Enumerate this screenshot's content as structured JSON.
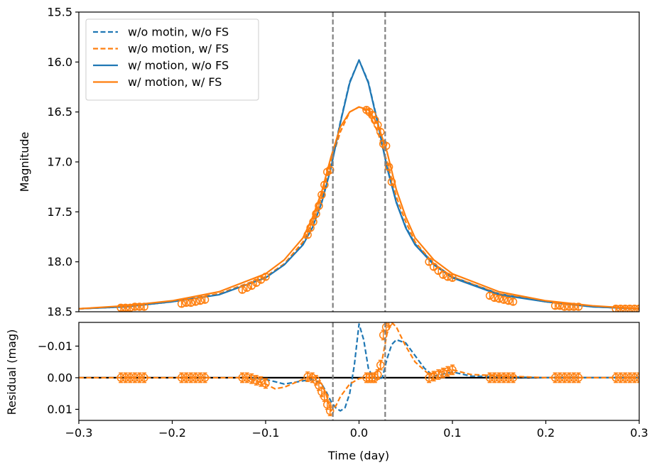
{
  "colors": {
    "blue": "#1f77b4",
    "orange": "#ff7f0e",
    "vline": "#808080",
    "zero_line": "#000000"
  },
  "chart_data": [
    {
      "type": "line",
      "panel": "top",
      "title": "",
      "xlabel": "",
      "ylabel": "Magnitude",
      "xlim": [
        -0.3,
        0.3
      ],
      "ylim": [
        18.5,
        15.5
      ],
      "y_inverted": true,
      "yticks": [
        "15.5",
        "16.0",
        "16.5",
        "17.0",
        "17.5",
        "18.0",
        "18.5"
      ],
      "vlines_x": [
        -0.028,
        0.028
      ],
      "legend_position": "top-left",
      "series": [
        {
          "name": "w/o motin, w/o FS",
          "style": "dashed",
          "color": "blue",
          "x": [
            -0.3,
            -0.25,
            -0.2,
            -0.15,
            -0.1,
            -0.08,
            -0.06,
            -0.05,
            -0.04,
            -0.03,
            -0.02,
            -0.01,
            0.0,
            0.01,
            0.02,
            0.03,
            0.04,
            0.05,
            0.06,
            0.08,
            0.1,
            0.15,
            0.2,
            0.25,
            0.3
          ],
          "y": [
            18.47,
            18.45,
            18.4,
            18.32,
            18.15,
            18.02,
            17.82,
            17.65,
            17.4,
            17.05,
            16.6,
            16.2,
            15.98,
            16.2,
            16.6,
            17.05,
            17.4,
            17.65,
            17.82,
            18.02,
            18.15,
            18.32,
            18.4,
            18.45,
            18.47
          ]
        },
        {
          "name": "w/o motion, w/ FS",
          "style": "dashed",
          "color": "orange",
          "x": [
            -0.3,
            -0.25,
            -0.2,
            -0.15,
            -0.1,
            -0.08,
            -0.06,
            -0.05,
            -0.04,
            -0.03,
            -0.02,
            -0.01,
            0.0,
            0.01,
            0.02,
            0.03,
            0.04,
            0.05,
            0.06,
            0.08,
            0.1,
            0.15,
            0.2,
            0.25,
            0.3
          ],
          "y": [
            18.47,
            18.45,
            18.4,
            18.32,
            18.15,
            18.02,
            17.8,
            17.6,
            17.35,
            17.0,
            16.7,
            16.5,
            16.45,
            16.5,
            16.7,
            17.0,
            17.35,
            17.6,
            17.8,
            18.02,
            18.15,
            18.32,
            18.4,
            18.45,
            18.47
          ]
        },
        {
          "name": "w/ motion, w/o FS",
          "style": "solid",
          "color": "blue",
          "x": [
            -0.3,
            -0.25,
            -0.2,
            -0.15,
            -0.1,
            -0.08,
            -0.06,
            -0.05,
            -0.04,
            -0.03,
            -0.02,
            -0.01,
            0.0,
            0.01,
            0.02,
            0.03,
            0.04,
            0.05,
            0.06,
            0.08,
            0.1,
            0.15,
            0.2,
            0.25,
            0.3
          ],
          "y": [
            18.47,
            18.45,
            18.4,
            18.33,
            18.16,
            18.03,
            17.83,
            17.66,
            17.41,
            17.06,
            16.61,
            16.21,
            15.98,
            16.21,
            16.61,
            17.06,
            17.41,
            17.66,
            17.83,
            18.03,
            18.16,
            18.33,
            18.4,
            18.45,
            18.47
          ]
        },
        {
          "name": "w/ motion, w/ FS",
          "style": "solid",
          "color": "orange",
          "x": [
            -0.3,
            -0.25,
            -0.2,
            -0.15,
            -0.1,
            -0.08,
            -0.06,
            -0.05,
            -0.04,
            -0.03,
            -0.02,
            -0.01,
            0.0,
            0.01,
            0.02,
            0.03,
            0.04,
            0.05,
            0.06,
            0.08,
            0.1,
            0.15,
            0.2,
            0.25,
            0.3
          ],
          "y": [
            18.47,
            18.44,
            18.39,
            18.3,
            18.12,
            17.98,
            17.76,
            17.56,
            17.3,
            16.95,
            16.65,
            16.5,
            16.45,
            16.48,
            16.62,
            16.9,
            17.28,
            17.55,
            17.76,
            17.98,
            18.12,
            18.3,
            18.39,
            18.44,
            18.47
          ]
        }
      ],
      "observations": {
        "color": "orange",
        "x": [
          -0.255,
          -0.25,
          -0.245,
          -0.24,
          -0.235,
          -0.23,
          -0.19,
          -0.185,
          -0.18,
          -0.175,
          -0.17,
          -0.165,
          -0.125,
          -0.12,
          -0.115,
          -0.11,
          -0.105,
          -0.1,
          -0.055,
          -0.052,
          -0.049,
          -0.046,
          -0.043,
          -0.04,
          -0.037,
          -0.034,
          -0.031,
          0.008,
          0.011,
          0.014,
          0.017,
          0.02,
          0.023,
          0.026,
          0.029,
          0.032,
          0.035,
          0.075,
          0.08,
          0.085,
          0.09,
          0.095,
          0.1,
          0.14,
          0.145,
          0.15,
          0.155,
          0.16,
          0.165,
          0.21,
          0.215,
          0.22,
          0.225,
          0.23,
          0.235,
          0.275,
          0.28,
          0.285,
          0.29,
          0.295,
          0.3
        ],
        "y": [
          18.46,
          18.46,
          18.46,
          18.45,
          18.45,
          18.45,
          18.42,
          18.41,
          18.41,
          18.4,
          18.39,
          18.38,
          18.28,
          18.26,
          18.24,
          18.21,
          18.18,
          18.15,
          17.73,
          17.66,
          17.6,
          17.52,
          17.44,
          17.33,
          17.23,
          17.1,
          17.08,
          16.48,
          16.5,
          16.53,
          16.58,
          16.63,
          16.7,
          16.82,
          16.84,
          17.05,
          17.2,
          18.0,
          18.05,
          18.09,
          18.13,
          18.15,
          18.16,
          18.34,
          18.36,
          18.37,
          18.38,
          18.39,
          18.4,
          18.44,
          18.44,
          18.45,
          18.45,
          18.45,
          18.45,
          18.47,
          18.47,
          18.47,
          18.47,
          18.47,
          18.47
        ],
        "yerr": 0.03
      }
    },
    {
      "type": "line",
      "panel": "bottom",
      "title": "",
      "xlabel": "Time (day)",
      "ylabel": "Residual (mag)",
      "xlim": [
        -0.3,
        0.3
      ],
      "ylim": [
        0.0135,
        -0.0175
      ],
      "y_inverted": true,
      "xticks": [
        "−0.3",
        "−0.2",
        "−0.1",
        "0.0",
        "0.1",
        "0.2",
        "0.3"
      ],
      "yticks": [
        "−0.01",
        "0.00",
        "0.01"
      ],
      "vlines_x": [
        -0.028,
        0.028
      ],
      "zero_line": 0.0,
      "series": [
        {
          "name": "w/o motin, w/o FS",
          "style": "dashed",
          "color": "blue",
          "x": [
            -0.3,
            -0.2,
            -0.12,
            -0.1,
            -0.08,
            -0.06,
            -0.05,
            -0.04,
            -0.035,
            -0.03,
            -0.025,
            -0.02,
            -0.015,
            -0.01,
            -0.005,
            0.0,
            0.005,
            0.01,
            0.015,
            0.02,
            0.025,
            0.03,
            0.035,
            0.04,
            0.05,
            0.06,
            0.07,
            0.08,
            0.1,
            0.12,
            0.2,
            0.3
          ],
          "y": [
            0,
            0,
            0,
            0.0005,
            0.002,
            0.001,
            0.0005,
            0.002,
            0.0045,
            0.0075,
            0.0095,
            0.0105,
            0.0095,
            0.005,
            -0.004,
            -0.017,
            -0.012,
            -0.003,
            0.0,
            0.0005,
            0.0,
            -0.006,
            -0.0105,
            -0.012,
            -0.011,
            -0.007,
            -0.003,
            -0.0005,
            -0.0018,
            -0.0005,
            0,
            0
          ]
        },
        {
          "name": "w/o motion, w/ FS",
          "style": "dashed",
          "color": "orange",
          "x": [
            -0.3,
            -0.2,
            -0.12,
            -0.1,
            -0.09,
            -0.08,
            -0.06,
            -0.05,
            -0.04,
            -0.035,
            -0.03,
            -0.025,
            -0.02,
            -0.01,
            0.0,
            0.005,
            0.01,
            0.015,
            0.02,
            0.025,
            0.03,
            0.035,
            0.04,
            0.05,
            0.06,
            0.075,
            0.09,
            0.1,
            0.12,
            0.2,
            0.3
          ],
          "y": [
            0,
            0,
            0,
            0.002,
            0.0035,
            0.003,
            0.0005,
            -0.0005,
            0.002,
            0.0055,
            0.0105,
            0.009,
            0.006,
            0.002,
            0.0003,
            0.0,
            0.0,
            0.0,
            -0.002,
            -0.006,
            -0.014,
            -0.0175,
            -0.016,
            -0.01,
            -0.005,
            -0.001,
            -0.002,
            -0.0025,
            -0.001,
            0,
            0
          ]
        }
      ],
      "observations": {
        "color": "orange",
        "x": [
          -0.255,
          -0.25,
          -0.245,
          -0.24,
          -0.235,
          -0.23,
          -0.19,
          -0.185,
          -0.18,
          -0.175,
          -0.17,
          -0.165,
          -0.125,
          -0.12,
          -0.115,
          -0.11,
          -0.105,
          -0.1,
          -0.055,
          -0.05,
          -0.046,
          -0.043,
          -0.04,
          -0.037,
          -0.034,
          -0.031,
          0.008,
          0.011,
          0.014,
          0.017,
          0.02,
          0.023,
          0.026,
          0.029,
          0.032,
          0.075,
          0.08,
          0.085,
          0.09,
          0.095,
          0.1,
          0.14,
          0.145,
          0.15,
          0.155,
          0.16,
          0.165,
          0.21,
          0.215,
          0.22,
          0.225,
          0.23,
          0.235,
          0.275,
          0.28,
          0.285,
          0.29,
          0.295,
          0.3
        ],
        "y": [
          0,
          0,
          0,
          0,
          0,
          0,
          0,
          0,
          0,
          0,
          0,
          0,
          0,
          0,
          0.0003,
          0.0008,
          0.0012,
          0.0018,
          -0.0003,
          0.0,
          0.0008,
          0.0025,
          0.0045,
          0.006,
          0.0085,
          0.0105,
          0.0,
          0.0,
          0.0,
          0.0,
          -0.001,
          -0.004,
          -0.0135,
          -0.016,
          -0.0175,
          0.0,
          -0.0005,
          -0.001,
          -0.0015,
          -0.002,
          -0.0025,
          0,
          0,
          0,
          0,
          0,
          0,
          0,
          0,
          0,
          0,
          0,
          0,
          0,
          0,
          0,
          0,
          0,
          0
        ],
        "yerr": 0.0015
      }
    }
  ]
}
